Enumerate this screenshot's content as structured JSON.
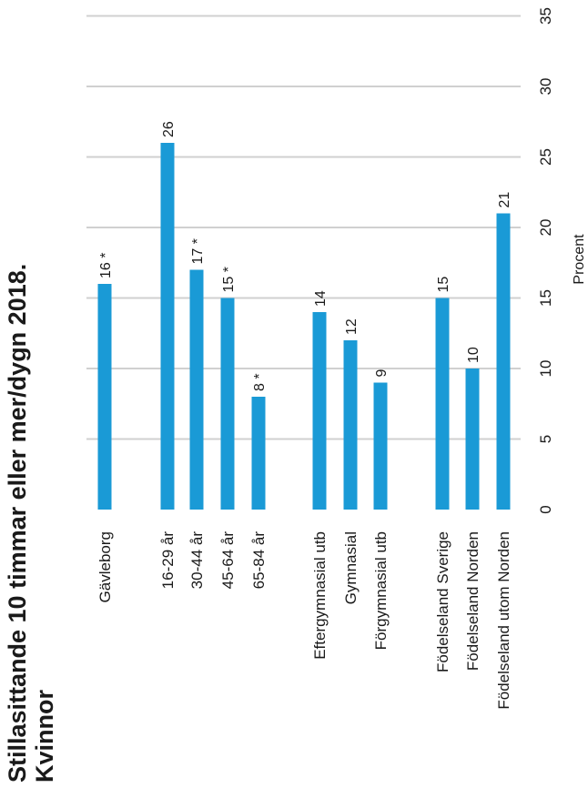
{
  "title": "Stillasittande 10 timmar eller mer/dygn 2018. Kvinnor",
  "chart_data": {
    "type": "bar",
    "orientation": "horizontal",
    "title": "Stillasittande 10 timmar eller mer/dygn 2018. Kvinnor",
    "title_lines": [
      "Stillasittande 10 timmar eller mer/dygn 2018.",
      "Kvinnor"
    ],
    "xlabel": "Procent",
    "ylabel": "",
    "xlim": [
      0,
      35
    ],
    "xticks": [
      0,
      5,
      10,
      15,
      20,
      25,
      30,
      35
    ],
    "grid": true,
    "bar_color": "#1a9ad6",
    "categories": [
      "Gävleborg",
      "16-29 år",
      "30-44 år",
      "45-64 år",
      "65-84 år",
      "Eftergymnasial utb",
      "Gymnasial",
      "Förgymnasial utb",
      "Födelseland Sverige",
      "Födelseland Norden",
      "Födelseland utom Norden"
    ],
    "values": [
      16,
      26,
      17,
      15,
      8,
      14,
      12,
      9,
      15,
      10,
      21
    ],
    "data_labels": [
      "16 *",
      "26",
      "17 *",
      "15 *",
      "8 *",
      "14",
      "12",
      "9",
      "15",
      "10",
      "21"
    ]
  }
}
